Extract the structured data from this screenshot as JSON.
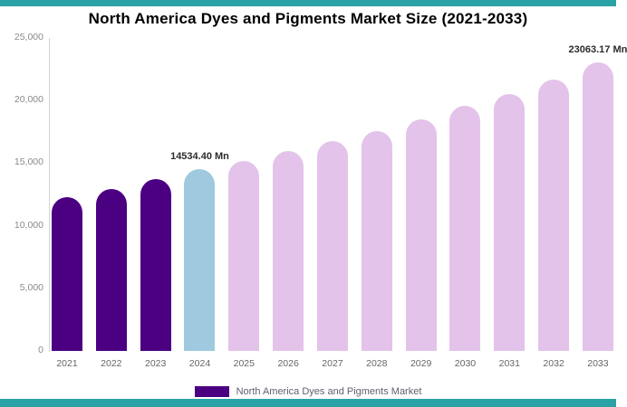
{
  "page": {
    "accent_teal": "#2ba3a6"
  },
  "chart_data": {
    "type": "bar",
    "title": "North America Dyes and Pigments Market Size (2021-2033)",
    "xlabel": "",
    "ylabel": "",
    "categories": [
      "2021",
      "2022",
      "2023",
      "2024",
      "2025",
      "2026",
      "2027",
      "2028",
      "2029",
      "2030",
      "2031",
      "2032",
      "2033"
    ],
    "values": [
      12300,
      12950,
      13700,
      14534.4,
      15200,
      15950,
      16750,
      17550,
      18500,
      19550,
      20550,
      21700,
      23063.17
    ],
    "unit": "Mn",
    "ylim": [
      0,
      25000
    ],
    "yticks": [
      0,
      5000,
      10000,
      15000,
      20000,
      25000
    ],
    "ytick_labels": [
      "0",
      "5,000",
      "10,000",
      "15,000",
      "20,000",
      "25,000"
    ],
    "grid": false,
    "bar_colors": [
      "#4B0082",
      "#4B0082",
      "#4B0082",
      "#9fc9de",
      "#e3c3e9",
      "#e3c3e9",
      "#e3c3e9",
      "#e3c3e9",
      "#e3c3e9",
      "#e3c3e9",
      "#e3c3e9",
      "#e3c3e9",
      "#e3c3e9"
    ],
    "annotations": [
      {
        "category": "2024",
        "text": "14534.40 Mn"
      },
      {
        "category": "2033",
        "text": "23063.17 Mn"
      }
    ],
    "legend": {
      "position": "bottom",
      "label": "North America Dyes and Pigments Market",
      "swatch_color": "#4B0082"
    }
  }
}
